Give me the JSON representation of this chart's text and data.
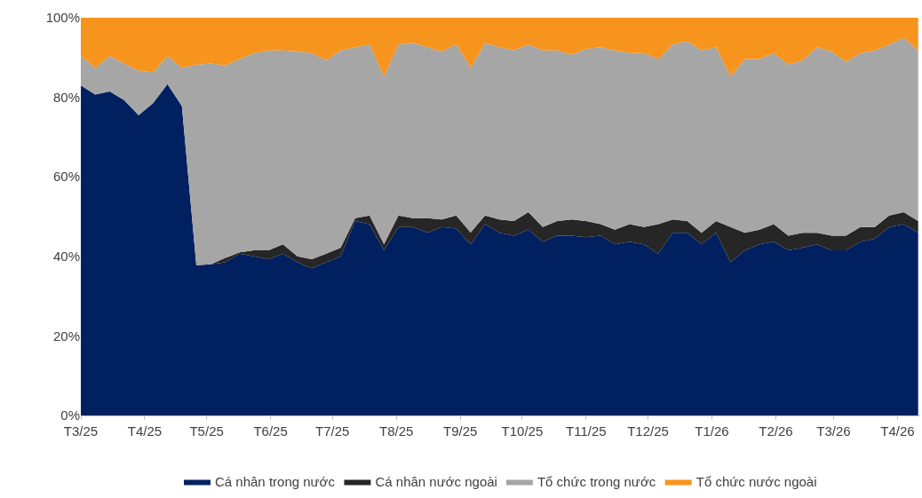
{
  "chart_data": {
    "type": "area",
    "stacked": true,
    "x": [
      "2025-03-01",
      "2025-03-08",
      "2025-03-15",
      "2025-03-22",
      "2025-03-29",
      "2025-04-05",
      "2025-04-12",
      "2025-04-19",
      "2025-04-26",
      "2025-05-03",
      "2025-05-10",
      "2025-05-17",
      "2025-05-24",
      "2025-05-31",
      "2025-06-07",
      "2025-06-14",
      "2025-06-21",
      "2025-06-28",
      "2025-07-05",
      "2025-07-12",
      "2025-07-19",
      "2025-07-26",
      "2025-08-02",
      "2025-08-09",
      "2025-08-16",
      "2025-08-23",
      "2025-08-30",
      "2025-09-06",
      "2025-09-13",
      "2025-09-20",
      "2025-09-27",
      "2025-10-04",
      "2025-10-11",
      "2025-10-18",
      "2025-10-25",
      "2025-11-01",
      "2025-11-08",
      "2025-11-15",
      "2025-11-22",
      "2025-11-29",
      "2025-12-06",
      "2025-12-13",
      "2025-12-20",
      "2025-12-27",
      "2026-01-03",
      "2026-01-10",
      "2026-01-17",
      "2026-01-24",
      "2026-01-31",
      "2026-02-07",
      "2026-02-14",
      "2026-02-21",
      "2026-02-28",
      "2026-03-07",
      "2026-03-14",
      "2026-03-21",
      "2026-03-28",
      "2026-04-04",
      "2026-04-11"
    ],
    "series": [
      {
        "name": "Cá nhân trong nước",
        "color": "#002060",
        "values": [
          83,
          80.7,
          81.5,
          79.3,
          75.5,
          78.5,
          83.3,
          77.8,
          37.8,
          38,
          38.5,
          40.7,
          40,
          39.3,
          40.7,
          38.5,
          37,
          38.5,
          40,
          48.9,
          48.1,
          41.5,
          47.4,
          47.4,
          46,
          47.4,
          47,
          43,
          48.1,
          45.9,
          45.2,
          46.7,
          43.7,
          45.2,
          45.2,
          44.8,
          45.2,
          43,
          43.7,
          43,
          40.7,
          45.9,
          45.9,
          43,
          45.9,
          38.5,
          41.5,
          43,
          43.7,
          41.5,
          42.2,
          43,
          41.5,
          41.5,
          43.7,
          44.4,
          47.4,
          48.1,
          45.9
        ]
      },
      {
        "name": "Cá nhân nước ngoài",
        "color": "#262626",
        "values": [
          0,
          0,
          0,
          0,
          0,
          0,
          0,
          0,
          0,
          0,
          1.1,
          0.3,
          1.5,
          2.2,
          2.3,
          1.5,
          2.3,
          2.2,
          2.2,
          0.7,
          2.2,
          1.5,
          2.9,
          2.2,
          3.6,
          1.9,
          3.3,
          3,
          2.2,
          3.4,
          3.7,
          4.4,
          3.7,
          3.7,
          4.1,
          4.1,
          2.9,
          3.7,
          4.4,
          4.4,
          7.4,
          3.4,
          3,
          2.9,
          3,
          8.9,
          4.4,
          3.7,
          4.4,
          3.7,
          3.7,
          2.9,
          3.7,
          3.7,
          3.7,
          3,
          2.9,
          3,
          3
        ]
      },
      {
        "name": "Tổ chức trong nước",
        "color": "#a6a6a6",
        "values": [
          7.4,
          6.7,
          8.9,
          9.2,
          11.2,
          7.8,
          7.1,
          9.6,
          50.4,
          50.5,
          48.4,
          48.6,
          49.6,
          50.3,
          48.8,
          51.5,
          51.8,
          48.6,
          49.6,
          43,
          43,
          42.2,
          43,
          44.1,
          43,
          42.2,
          43,
          41.4,
          43.4,
          43.3,
          42.9,
          42.2,
          44.4,
          42.9,
          41.4,
          43.3,
          44.5,
          45.1,
          43,
          43.7,
          41.5,
          44,
          45.2,
          45.9,
          43.7,
          37.8,
          43.7,
          42.9,
          43,
          43,
          43.4,
          46.7,
          46.3,
          43.7,
          43.7,
          44.4,
          43,
          43.8,
          42.9
        ]
      },
      {
        "name": "Tổ chức nước ngoài",
        "color": "#f7941d",
        "values": [
          9.6,
          12.6,
          9.6,
          11.5,
          13.3,
          13.7,
          9.6,
          12.6,
          11.8,
          11.5,
          12,
          10.4,
          8.9,
          8.2,
          8.2,
          8.5,
          8.9,
          10.7,
          8.2,
          7.4,
          6.7,
          14.8,
          6.7,
          6.3,
          7.4,
          8.5,
          6.7,
          12.6,
          6.3,
          7.4,
          8.2,
          6.7,
          8.2,
          8.2,
          9.3,
          7.8,
          7.4,
          8.2,
          8.9,
          8.9,
          10.4,
          6.7,
          5.9,
          8.2,
          7.4,
          14.8,
          10.4,
          10.4,
          8.9,
          11.8,
          10.7,
          7.4,
          8.5,
          11.1,
          8.9,
          8.2,
          6.7,
          5.1,
          8.2
        ]
      }
    ],
    "xlim": [
      "2025-03-01",
      "2026-04-12"
    ],
    "xticks": [
      {
        "value": "2025-03-01",
        "label": "T3/25"
      },
      {
        "value": "2025-04-01",
        "label": "T4/25"
      },
      {
        "value": "2025-05-01",
        "label": "T5/25"
      },
      {
        "value": "2025-06-01",
        "label": "T6/25"
      },
      {
        "value": "2025-07-01",
        "label": "T7/25"
      },
      {
        "value": "2025-08-01",
        "label": "T8/25"
      },
      {
        "value": "2025-09-01",
        "label": "T9/25"
      },
      {
        "value": "2025-10-01",
        "label": "T10/25"
      },
      {
        "value": "2025-11-01",
        "label": "T11/25"
      },
      {
        "value": "2025-12-01",
        "label": "T12/25"
      },
      {
        "value": "2026-01-01",
        "label": "T1/26"
      },
      {
        "value": "2026-02-01",
        "label": "T2/26"
      },
      {
        "value": "2026-03-01",
        "label": "T3/26"
      },
      {
        "value": "2026-04-01",
        "label": "T4/26"
      }
    ],
    "ylim": [
      0,
      100
    ],
    "yticks": [
      {
        "value": 0,
        "label": "0%"
      },
      {
        "value": 20,
        "label": "20%"
      },
      {
        "value": 40,
        "label": "40%"
      },
      {
        "value": 60,
        "label": "60%"
      },
      {
        "value": 80,
        "label": "80%"
      },
      {
        "value": 100,
        "label": "100%"
      }
    ],
    "legend": "bottom"
  }
}
